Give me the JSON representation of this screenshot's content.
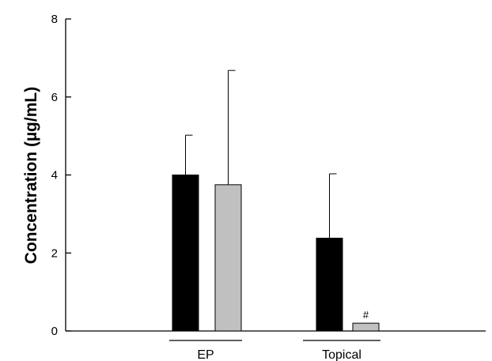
{
  "chart_data": {
    "type": "bar",
    "title": "",
    "xlabel": "",
    "ylabel": "Concentration (µg/mL)",
    "ylim": [
      0,
      8
    ],
    "yticks": [
      "0",
      "2",
      "4",
      "6",
      "8"
    ],
    "grid": false,
    "legend": "none",
    "groups": [
      "EP",
      "Topical"
    ],
    "series": [
      {
        "color": "#000000",
        "values": [
          4.0,
          2.38
        ],
        "error": [
          1.02,
          1.65
        ]
      },
      {
        "color": "#c0c0c0",
        "values": [
          3.75,
          0.2
        ],
        "error": [
          2.93,
          0
        ]
      }
    ],
    "annotations": [
      {
        "text": "#",
        "group": "Topical",
        "series_index": 1
      }
    ]
  }
}
